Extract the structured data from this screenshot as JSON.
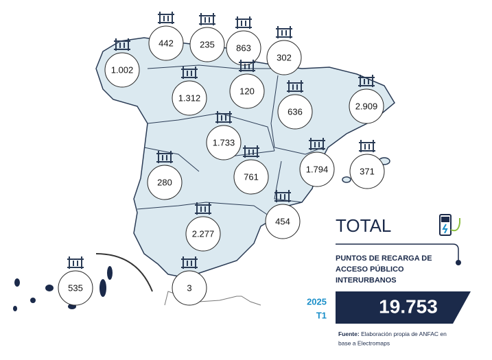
{
  "regions": [
    {
      "label": "442"
    },
    {
      "label": "235"
    },
    {
      "label": "863"
    },
    {
      "label": "302"
    },
    {
      "label": "1.002"
    },
    {
      "label": "1.312"
    },
    {
      "label": "120"
    },
    {
      "label": "636"
    },
    {
      "label": "2.909"
    },
    {
      "label": "1.733"
    },
    {
      "label": "280"
    },
    {
      "label": "761"
    },
    {
      "label": "1.794"
    },
    {
      "label": "371"
    },
    {
      "label": "454"
    },
    {
      "label": "2.277"
    },
    {
      "label": "3"
    },
    {
      "label": "535"
    }
  ],
  "total": {
    "title": "TOTAL",
    "subtitle": [
      "PUNTOS DE RECARGA DE",
      "ACCESO PÚBLICO",
      "INTERURBANOS"
    ],
    "year": "2025",
    "quarter": "T1",
    "value": "19.753"
  },
  "source": {
    "label": "Fuente:",
    "text": [
      "Elaboración propia de ANFAC en",
      "base a Electromaps"
    ]
  }
}
